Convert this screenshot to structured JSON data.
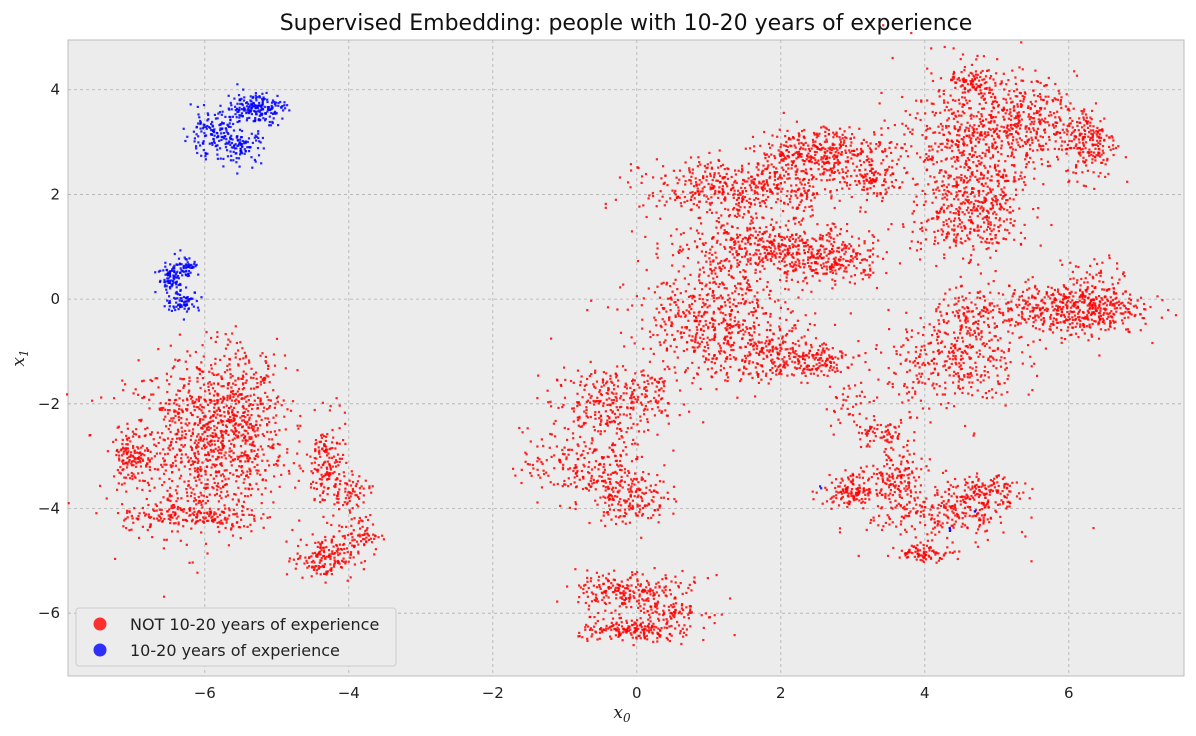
{
  "chart_data": {
    "type": "scatter",
    "title": "Supervised Embedding: people with 10-20 years of experience",
    "xlabel": "x",
    "xlabel_sub": "0",
    "ylabel": "x",
    "ylabel_sub": "1",
    "xlim": [
      -7.9,
      7.6
    ],
    "ylim": [
      -7.2,
      4.95
    ],
    "xticks": [
      -6,
      -4,
      -2,
      0,
      2,
      4,
      6
    ],
    "yticks": [
      -6,
      -4,
      -2,
      0,
      2,
      4
    ],
    "grid": true,
    "background": "#ececec",
    "legend_position": "bottom-left",
    "series": [
      {
        "name": "NOT 10-20 years of experience",
        "color": "#ff0000",
        "clusters": [
          {
            "cx": -6.0,
            "cy": -2.8,
            "sx": 0.55,
            "sy": 0.85,
            "n": 900
          },
          {
            "cx": -5.5,
            "cy": -2.2,
            "sx": 0.3,
            "sy": 0.7,
            "n": 300
          },
          {
            "cx": -4.3,
            "cy": -3.2,
            "sx": 0.15,
            "sy": 0.45,
            "n": 160
          },
          {
            "cx": -4.0,
            "cy": -3.7,
            "sx": 0.15,
            "sy": 0.15,
            "n": 60
          },
          {
            "cx": -4.35,
            "cy": -4.95,
            "sx": 0.2,
            "sy": 0.2,
            "n": 160
          },
          {
            "cx": -3.85,
            "cy": -4.5,
            "sx": 0.15,
            "sy": 0.2,
            "n": 70
          },
          {
            "cx": -6.2,
            "cy": -4.15,
            "sx": 0.5,
            "sy": 0.12,
            "n": 160
          },
          {
            "cx": -7.0,
            "cy": -3.0,
            "sx": 0.15,
            "sy": 0.25,
            "n": 120
          },
          {
            "cx": -0.4,
            "cy": -2.0,
            "sx": 0.4,
            "sy": 0.35,
            "n": 280
          },
          {
            "cx": -0.7,
            "cy": -3.2,
            "sx": 0.45,
            "sy": 0.35,
            "n": 240
          },
          {
            "cx": -0.1,
            "cy": -3.8,
            "sx": 0.25,
            "sy": 0.25,
            "n": 160
          },
          {
            "cx": -0.25,
            "cy": -5.6,
            "sx": 0.3,
            "sy": 0.2,
            "n": 180
          },
          {
            "cx": -0.1,
            "cy": -6.35,
            "sx": 0.35,
            "sy": 0.1,
            "n": 150
          },
          {
            "cx": 0.4,
            "cy": -5.9,
            "sx": 0.3,
            "sy": 0.3,
            "n": 180
          },
          {
            "cx": 0.2,
            "cy": -1.6,
            "sx": 0.2,
            "sy": 0.15,
            "n": 40
          },
          {
            "cx": 1.5,
            "cy": 2.1,
            "sx": 0.7,
            "sy": 0.3,
            "n": 520
          },
          {
            "cx": 2.6,
            "cy": 2.8,
            "sx": 0.45,
            "sy": 0.25,
            "n": 380
          },
          {
            "cx": 1.8,
            "cy": 1.0,
            "sx": 0.7,
            "sy": 0.25,
            "n": 440
          },
          {
            "cx": 2.7,
            "cy": 0.7,
            "sx": 0.35,
            "sy": 0.2,
            "n": 200
          },
          {
            "cx": 3.3,
            "cy": 2.25,
            "sx": 0.15,
            "sy": 0.15,
            "n": 80
          },
          {
            "cx": 1.0,
            "cy": -0.3,
            "sx": 0.55,
            "sy": 0.35,
            "n": 320
          },
          {
            "cx": 1.6,
            "cy": -1.0,
            "sx": 0.6,
            "sy": 0.3,
            "n": 360
          },
          {
            "cx": 2.4,
            "cy": -1.2,
            "sx": 0.3,
            "sy": 0.15,
            "n": 120
          },
          {
            "cx": 4.6,
            "cy": 3.0,
            "sx": 0.5,
            "sy": 0.7,
            "n": 520
          },
          {
            "cx": 5.4,
            "cy": 3.4,
            "sx": 0.35,
            "sy": 0.4,
            "n": 320
          },
          {
            "cx": 4.7,
            "cy": 4.15,
            "sx": 0.2,
            "sy": 0.1,
            "n": 90
          },
          {
            "cx": 4.85,
            "cy": 1.7,
            "sx": 0.25,
            "sy": 0.5,
            "n": 240
          },
          {
            "cx": 4.3,
            "cy": 1.5,
            "sx": 0.25,
            "sy": 0.4,
            "n": 140
          },
          {
            "cx": 6.3,
            "cy": 3.0,
            "sx": 0.18,
            "sy": 0.35,
            "n": 200
          },
          {
            "cx": 5.8,
            "cy": -0.2,
            "sx": 0.6,
            "sy": 0.25,
            "n": 440
          },
          {
            "cx": 6.4,
            "cy": 0.0,
            "sx": 0.25,
            "sy": 0.35,
            "n": 180
          },
          {
            "cx": 4.4,
            "cy": -1.2,
            "sx": 0.45,
            "sy": 0.45,
            "n": 340
          },
          {
            "cx": 4.6,
            "cy": -0.4,
            "sx": 0.25,
            "sy": 0.25,
            "n": 90
          },
          {
            "cx": 3.4,
            "cy": -2.6,
            "sx": 0.2,
            "sy": 0.15,
            "n": 70
          },
          {
            "cx": 3.0,
            "cy": -3.65,
            "sx": 0.2,
            "sy": 0.15,
            "n": 140
          },
          {
            "cx": 3.6,
            "cy": -3.4,
            "sx": 0.2,
            "sy": 0.25,
            "n": 120
          },
          {
            "cx": 4.2,
            "cy": -4.1,
            "sx": 0.5,
            "sy": 0.3,
            "n": 260
          },
          {
            "cx": 4.85,
            "cy": -3.7,
            "sx": 0.25,
            "sy": 0.15,
            "n": 140
          },
          {
            "cx": 4.0,
            "cy": -4.85,
            "sx": 0.2,
            "sy": 0.08,
            "n": 80
          },
          {
            "cx": 3.0,
            "cy": -2.0,
            "sx": 0.2,
            "sy": 0.25,
            "n": 40
          },
          {
            "cx": 1.4,
            "cy": 0.35,
            "sx": 0.4,
            "sy": 0.2,
            "n": 80
          }
        ]
      },
      {
        "name": "10-20 years of experience",
        "color": "#0000ff",
        "clusters": [
          {
            "cx": -5.3,
            "cy": 3.65,
            "sx": 0.2,
            "sy": 0.15,
            "n": 200
          },
          {
            "cx": -5.9,
            "cy": 3.15,
            "sx": 0.2,
            "sy": 0.2,
            "n": 140
          },
          {
            "cx": -5.5,
            "cy": 2.9,
            "sx": 0.15,
            "sy": 0.15,
            "n": 90
          },
          {
            "cx": -6.45,
            "cy": 0.4,
            "sx": 0.1,
            "sy": 0.15,
            "n": 90
          },
          {
            "cx": -6.25,
            "cy": 0.65,
            "sx": 0.08,
            "sy": 0.1,
            "n": 50
          },
          {
            "cx": -6.3,
            "cy": -0.05,
            "sx": 0.12,
            "sy": 0.1,
            "n": 70
          },
          {
            "cx": 2.55,
            "cy": -3.6,
            "sx": 0.01,
            "sy": 0.01,
            "n": 2
          },
          {
            "cx": 4.35,
            "cy": -4.4,
            "sx": 0.02,
            "sy": 0.02,
            "n": 3
          },
          {
            "cx": 4.7,
            "cy": -4.05,
            "sx": 0.01,
            "sy": 0.01,
            "n": 2
          }
        ]
      }
    ]
  }
}
